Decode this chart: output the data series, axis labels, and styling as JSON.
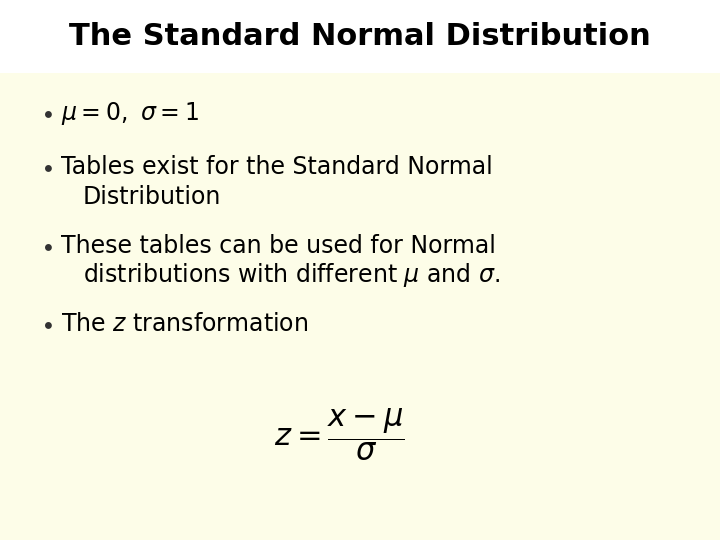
{
  "title": "The Standard Normal Distribution",
  "title_fontsize": 22,
  "title_fontweight": "bold",
  "title_bg_color": "#ffffff",
  "content_bg_color": "#fdfde8",
  "text_color": "#000000",
  "bullet_color": "#333333",
  "bullet1": "$\\mu= 0,\\ \\sigma= 1$",
  "bullet2_line1": "Tables exist for the Standard Normal",
  "bullet2_line2": "Distribution",
  "bullet3_line1": "These tables can be used for Normal",
  "bullet3_line2": "distributions with different $\\mu$ and $\\sigma$.",
  "bullet4": "The $z$ transformation",
  "formula": "$z = \\dfrac{x - \\mu}{\\sigma}$",
  "body_fontsize": 17,
  "formula_fontsize": 22
}
